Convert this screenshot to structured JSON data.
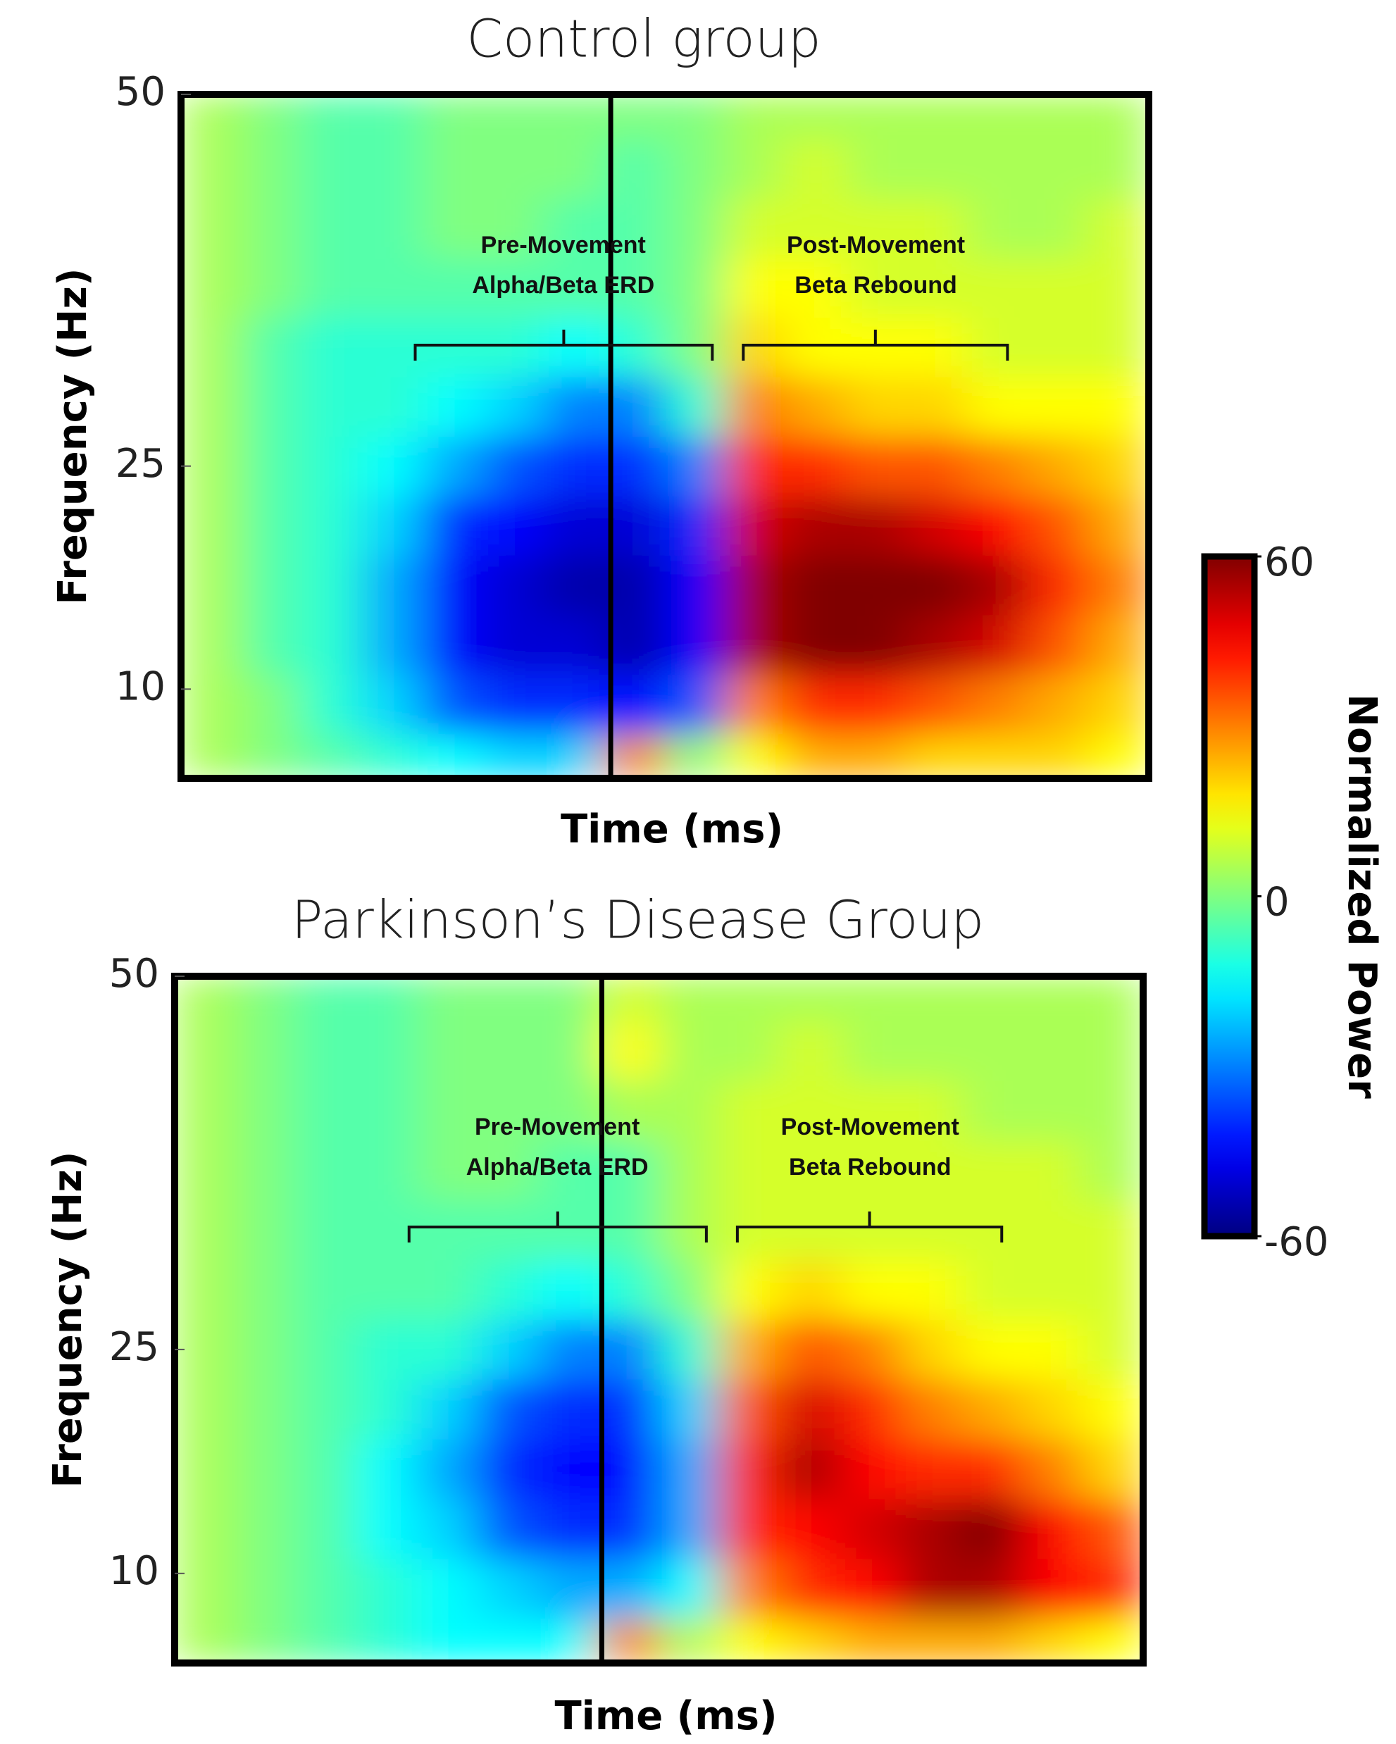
{
  "chart_data": [
    {
      "type": "heatmap",
      "title": "Control group",
      "xlabel": "Time (ms)",
      "ylabel": "Frequency (Hz)",
      "categories": [
        null,
        null,
        null,
        null,
        null,
        null,
        null,
        null,
        null,
        null,
        null,
        null,
        null,
        null,
        null,
        null
      ],
      "y": [
        5,
        9,
        13,
        17,
        21,
        25,
        29,
        33,
        37,
        41,
        45,
        49
      ],
      "values": [
        [
          5,
          0,
          -5,
          -10,
          -15,
          -20,
          -20,
          30,
          0,
          15,
          25,
          25,
          20,
          20,
          20,
          15
        ],
        [
          5,
          0,
          -10,
          -20,
          -35,
          -40,
          -40,
          -45,
          -35,
          30,
          40,
          40,
          35,
          30,
          25,
          20
        ],
        [
          5,
          -5,
          -10,
          -25,
          -45,
          -50,
          -50,
          -55,
          -45,
          55,
          60,
          60,
          55,
          50,
          35,
          25
        ],
        [
          5,
          -5,
          -10,
          -25,
          -45,
          -50,
          -55,
          -55,
          -45,
          55,
          60,
          60,
          60,
          55,
          40,
          30
        ],
        [
          5,
          -5,
          -10,
          -20,
          -40,
          -45,
          -50,
          -50,
          -40,
          50,
          55,
          55,
          50,
          45,
          35,
          25
        ],
        [
          5,
          -5,
          -10,
          -15,
          -25,
          -35,
          -40,
          -40,
          -30,
          40,
          40,
          35,
          35,
          30,
          25,
          20
        ],
        [
          5,
          -5,
          -10,
          -10,
          -15,
          -20,
          -30,
          -30,
          -10,
          30,
          25,
          20,
          20,
          15,
          15,
          15
        ],
        [
          5,
          -5,
          -10,
          -10,
          -10,
          -10,
          -15,
          -10,
          0,
          20,
          15,
          15,
          15,
          10,
          10,
          10
        ],
        [
          5,
          0,
          -5,
          -5,
          -5,
          -5,
          -5,
          -5,
          0,
          15,
          15,
          10,
          10,
          10,
          10,
          10
        ],
        [
          5,
          0,
          -5,
          -5,
          0,
          0,
          -5,
          -5,
          0,
          10,
          10,
          10,
          10,
          5,
          5,
          10
        ],
        [
          5,
          0,
          -5,
          -5,
          0,
          0,
          0,
          -5,
          0,
          5,
          10,
          5,
          5,
          5,
          5,
          5
        ],
        [
          5,
          0,
          -5,
          -5,
          0,
          0,
          0,
          0,
          0,
          5,
          5,
          5,
          5,
          5,
          5,
          5
        ]
      ],
      "ylim": [
        4,
        50
      ],
      "yticks": [
        10,
        25,
        50
      ],
      "colormap": "jet",
      "zlim": [
        -60,
        60
      ],
      "annotations": [
        [
          "Pre-Movement",
          "Alpha/Beta ERD"
        ],
        [
          "Post-Movement",
          "Beta Rebound"
        ]
      ]
    },
    {
      "type": "heatmap",
      "title": "Parkinson’s Disease Group",
      "xlabel": "Time (ms)",
      "ylabel": "Frequency (Hz)",
      "categories": [
        null,
        null,
        null,
        null,
        null,
        null,
        null,
        null,
        null,
        null,
        null,
        null,
        null,
        null,
        null,
        null
      ],
      "y": [
        5,
        9,
        13,
        17,
        21,
        25,
        29,
        33,
        37,
        41,
        45,
        49
      ],
      "values": [
        [
          5,
          0,
          -5,
          -10,
          -15,
          -15,
          -15,
          30,
          5,
          15,
          20,
          25,
          25,
          25,
          20,
          15
        ],
        [
          5,
          0,
          -5,
          -10,
          -15,
          -20,
          -25,
          -25,
          -15,
          30,
          40,
          45,
          55,
          55,
          45,
          40
        ],
        [
          5,
          0,
          -5,
          -15,
          -20,
          -35,
          -40,
          -40,
          -25,
          40,
          45,
          50,
          55,
          60,
          45,
          35
        ],
        [
          5,
          0,
          -5,
          -15,
          -25,
          -40,
          -45,
          -45,
          -25,
          40,
          55,
          45,
          40,
          40,
          30,
          20
        ],
        [
          5,
          0,
          -5,
          -10,
          -20,
          -35,
          -40,
          -40,
          -20,
          35,
          50,
          40,
          30,
          25,
          20,
          15
        ],
        [
          5,
          0,
          -5,
          -10,
          -10,
          -20,
          -30,
          -30,
          -10,
          25,
          35,
          30,
          20,
          15,
          15,
          10
        ],
        [
          5,
          0,
          -5,
          -5,
          -5,
          -10,
          -15,
          -10,
          0,
          15,
          20,
          15,
          15,
          10,
          10,
          10
        ],
        [
          5,
          0,
          -5,
          -5,
          -5,
          -5,
          -5,
          -5,
          5,
          10,
          10,
          10,
          10,
          10,
          10,
          10
        ],
        [
          5,
          0,
          -5,
          -5,
          0,
          0,
          -5,
          -5,
          5,
          10,
          10,
          10,
          10,
          10,
          10,
          5
        ],
        [
          5,
          0,
          -5,
          -5,
          0,
          0,
          0,
          5,
          5,
          10,
          10,
          10,
          10,
          5,
          5,
          5
        ],
        [
          5,
          0,
          -5,
          -5,
          0,
          0,
          0,
          15,
          5,
          5,
          10,
          5,
          5,
          5,
          5,
          5
        ],
        [
          5,
          0,
          -5,
          -5,
          0,
          0,
          0,
          10,
          5,
          5,
          5,
          5,
          5,
          5,
          5,
          5
        ]
      ],
      "ylim": [
        4,
        50
      ],
      "yticks": [
        10,
        25,
        50
      ],
      "colormap": "jet",
      "zlim": [
        -60,
        60
      ],
      "annotations": [
        [
          "Pre-Movement",
          "Alpha/Beta ERD"
        ],
        [
          "Post-Movement",
          "Beta Rebound"
        ]
      ]
    }
  ],
  "colorbar": {
    "label": "Normalized Power",
    "lim": [
      -60,
      60
    ],
    "ticks": [
      60,
      0,
      -60
    ],
    "colormap": "jet"
  }
}
